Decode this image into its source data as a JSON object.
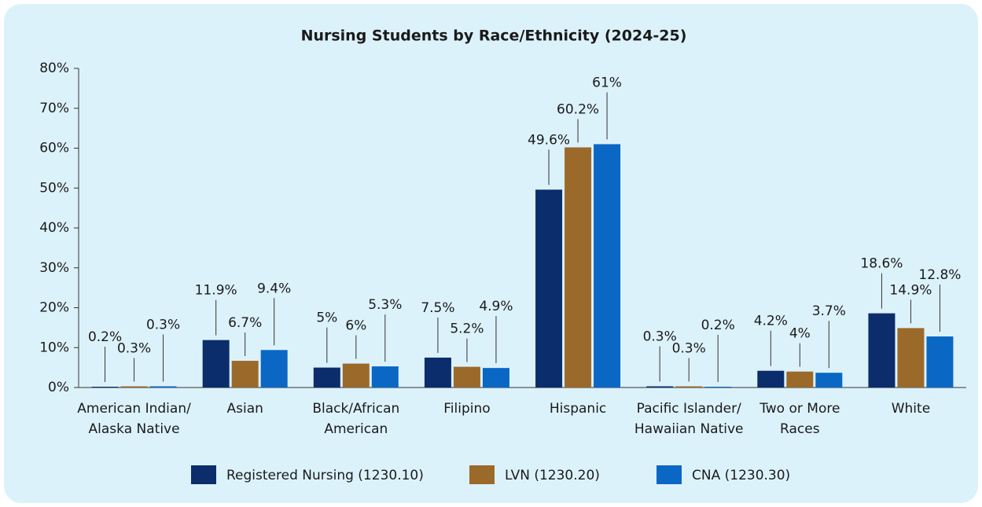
{
  "chart_data": {
    "type": "bar",
    "title": "Nursing Students by Race/Ethnicity (2024-25)",
    "categories": [
      "American Indian/\nAlaska Native",
      "Asian",
      "Black/African\nAmerican",
      "Filipino",
      "Hispanic",
      "Pacific Islander/\nHawaiian Native",
      "Two or More\nRaces",
      "White"
    ],
    "series": [
      {
        "name": "Registered Nursing (1230.10)",
        "color": "#0b2d6b",
        "values": [
          0.2,
          11.9,
          5,
          7.5,
          49.6,
          0.3,
          4.2,
          18.6
        ],
        "value_labels": [
          "0.2%",
          "11.9%",
          "5%",
          "7.5%",
          "49.6%",
          "0.3%",
          "4.2%",
          "18.6%"
        ]
      },
      {
        "name": "LVN (1230.20)",
        "color": "#9b6a2b",
        "values": [
          0.3,
          6.7,
          6,
          5.2,
          60.2,
          0.3,
          4,
          14.9
        ],
        "value_labels": [
          "0.3%",
          "6.7%",
          "6%",
          "5.2%",
          "60.2%",
          "0.3%",
          "4%",
          "14.9%"
        ]
      },
      {
        "name": "CNA (1230.30)",
        "color": "#0a67c4",
        "values": [
          0.3,
          9.4,
          5.3,
          4.9,
          61,
          0.2,
          3.7,
          12.8
        ],
        "value_labels": [
          "0.3%",
          "9.4%",
          "5.3%",
          "4.9%",
          "61%",
          "0.2%",
          "3.7%",
          "12.8%"
        ]
      }
    ],
    "ylim": [
      0,
      80
    ],
    "yticks": [
      {
        "value": 0,
        "label": "0%"
      },
      {
        "value": 10,
        "label": "10%"
      },
      {
        "value": 20,
        "label": "20%"
      },
      {
        "value": 30,
        "label": "30%"
      },
      {
        "value": 40,
        "label": "40%"
      },
      {
        "value": 50,
        "label": "50%"
      },
      {
        "value": 60,
        "label": "60%"
      },
      {
        "value": 70,
        "label": "70%"
      },
      {
        "value": 80,
        "label": "80%"
      }
    ],
    "grid": false,
    "legend": "bottom"
  }
}
